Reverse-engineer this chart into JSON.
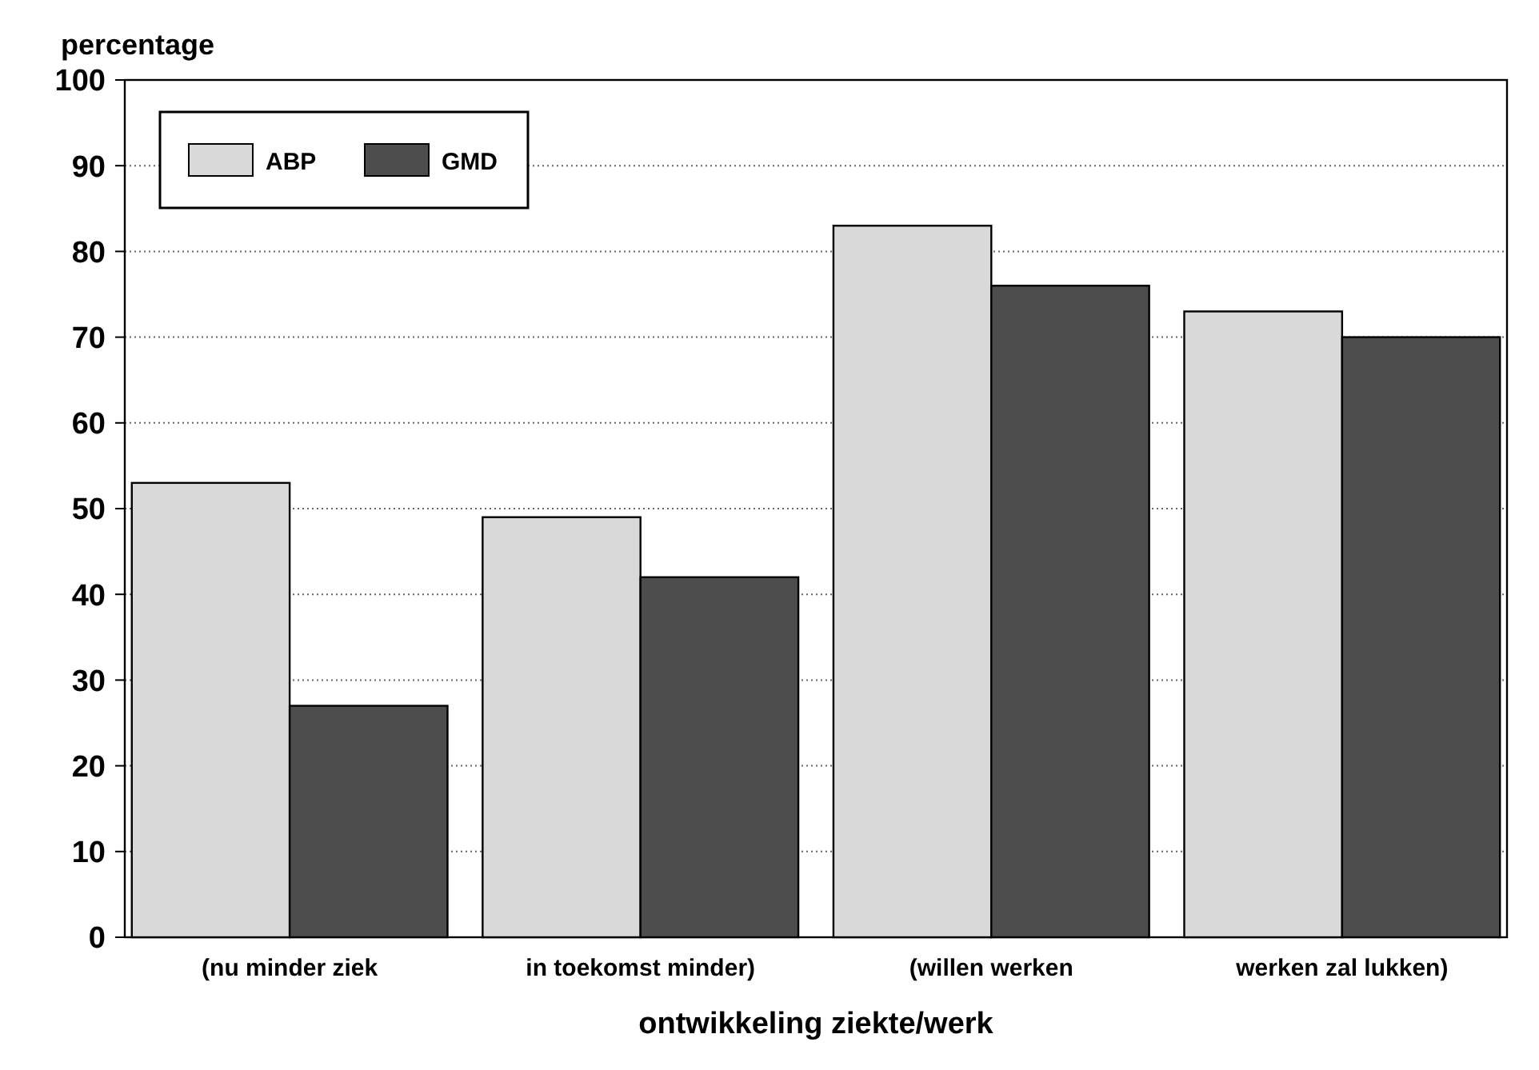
{
  "chart_data": {
    "type": "bar",
    "ylabel": "percentage",
    "xlabel": "ontwikkeling ziekte/werk",
    "categories": [
      "(nu minder ziek",
      "in toekomst minder)",
      "(willen werken",
      "werken zal lukken)"
    ],
    "series": [
      {
        "name": "ABP",
        "color": "#d9d9d9",
        "values": [
          53,
          49,
          83,
          73
        ]
      },
      {
        "name": "GMD",
        "color": "#4d4d4d",
        "values": [
          27,
          42,
          76,
          70
        ]
      }
    ],
    "ylim": [
      0,
      100
    ],
    "yticks": [
      0,
      10,
      20,
      30,
      40,
      50,
      60,
      70,
      80,
      90,
      100
    ],
    "grid": "y",
    "legend": "top left"
  }
}
